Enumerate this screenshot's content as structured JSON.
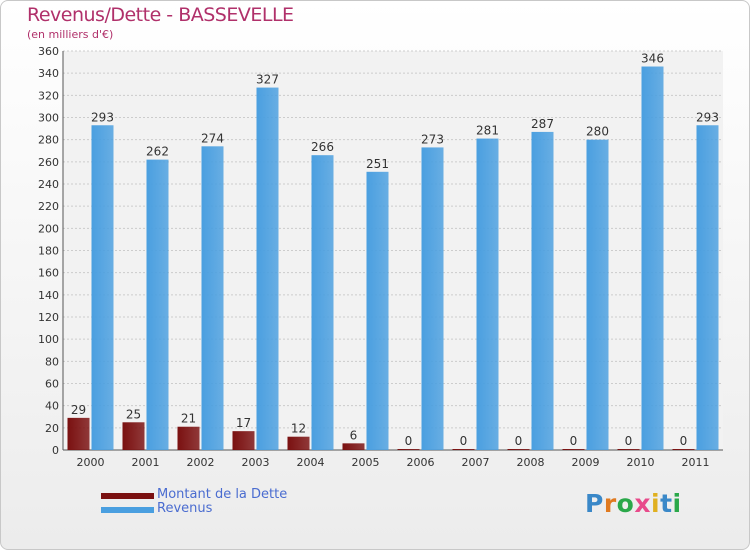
{
  "chart_data": {
    "type": "bar",
    "title": "Revenus/Dette - BASSEVELLE",
    "subtitle": "(en milliers d'€)",
    "categories": [
      "2000",
      "2001",
      "2002",
      "2003",
      "2004",
      "2005",
      "2006",
      "2007",
      "2008",
      "2009",
      "2010",
      "2011"
    ],
    "series": [
      {
        "name": "Montant de la Dette",
        "color": "#7a1010",
        "values": [
          29,
          25,
          21,
          17,
          12,
          6,
          0,
          0,
          0,
          0,
          0,
          0
        ]
      },
      {
        "name": "Revenus",
        "color": "#4a9fe0",
        "values": [
          293,
          262,
          274,
          327,
          266,
          251,
          273,
          281,
          287,
          280,
          346,
          293
        ]
      }
    ],
    "ylim": [
      0,
      360
    ],
    "yticks": [
      0,
      20,
      40,
      60,
      80,
      100,
      120,
      140,
      160,
      180,
      200,
      220,
      240,
      260,
      280,
      300,
      320,
      340,
      360
    ],
    "grid": true,
    "legend_position": "bottom-left"
  },
  "logo": {
    "letters": [
      {
        "ch": "P",
        "color": "#3a88c8"
      },
      {
        "ch": "r",
        "color": "#e07a20"
      },
      {
        "ch": "o",
        "color": "#2aa84a"
      },
      {
        "ch": "x",
        "color": "#e84a8a"
      },
      {
        "ch": "i",
        "color": "#e0b020"
      },
      {
        "ch": "t",
        "color": "#3a88c8"
      },
      {
        "ch": "i",
        "color": "#2aa84a"
      }
    ]
  }
}
